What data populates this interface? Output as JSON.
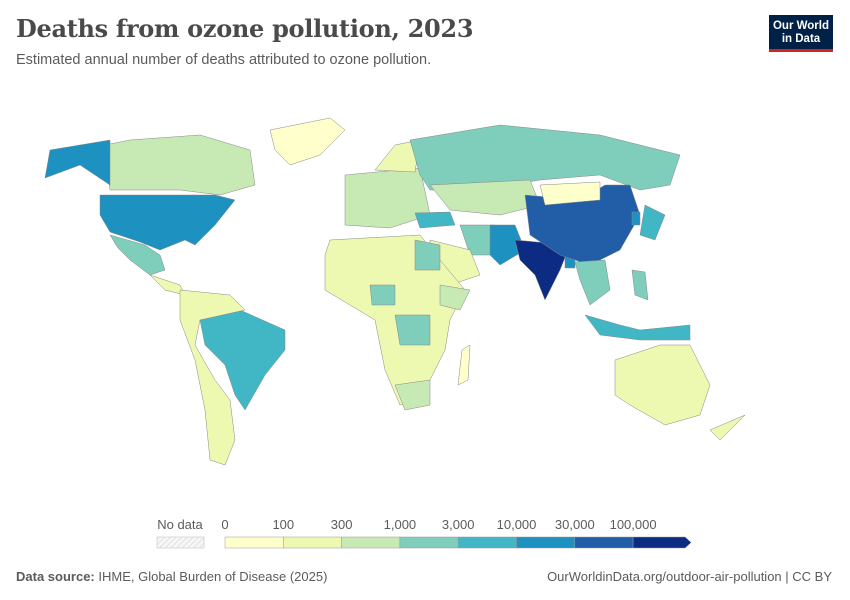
{
  "header": {
    "title": "Deaths from ozone pollution, 2023",
    "subtitle": "Estimated annual number of deaths attributed to ozone pollution.",
    "logo": "Our World in Data"
  },
  "chart_data": {
    "type": "choropleth",
    "title": "Deaths from ozone pollution, 2023",
    "subtitle": "Estimated annual number of deaths attributed to ozone pollution.",
    "legend": {
      "no_data_label": "No data",
      "ticks": [
        "0",
        "100",
        "300",
        "1,000",
        "3,000",
        "10,000",
        "30,000",
        "100,000"
      ],
      "colors": [
        "#ffffcc",
        "#edf8b1",
        "#c7e9b4",
        "#7fcdbb",
        "#41b6c4",
        "#1d91c0",
        "#225ea8",
        "#0c2c84"
      ],
      "no_data_color": "#eeeeee",
      "placement": "bottom"
    },
    "regions": [
      {
        "name": "Canada",
        "bin": 2
      },
      {
        "name": "United States",
        "bin": 5
      },
      {
        "name": "Greenland",
        "bin": 0
      },
      {
        "name": "Mexico",
        "bin": 3
      },
      {
        "name": "Central America",
        "bin": 1
      },
      {
        "name": "Brazil",
        "bin": 4
      },
      {
        "name": "Rest of South America",
        "bin": 1
      },
      {
        "name": "Europe",
        "bin": 2
      },
      {
        "name": "Scandinavia",
        "bin": 1
      },
      {
        "name": "Russia",
        "bin": 3
      },
      {
        "name": "Central Asia",
        "bin": 2
      },
      {
        "name": "Turkey",
        "bin": 4
      },
      {
        "name": "Iran",
        "bin": 3
      },
      {
        "name": "Arabian Peninsula",
        "bin": 1
      },
      {
        "name": "Africa",
        "bin": 1
      },
      {
        "name": "Egypt",
        "bin": 3
      },
      {
        "name": "Nigeria",
        "bin": 3
      },
      {
        "name": "DR Congo",
        "bin": 3
      },
      {
        "name": "South Africa",
        "bin": 2
      },
      {
        "name": "Ethiopia",
        "bin": 2
      },
      {
        "name": "Madagascar",
        "bin": 0
      },
      {
        "name": "Pakistan",
        "bin": 5
      },
      {
        "name": "India",
        "bin": 7
      },
      {
        "name": "Bangladesh",
        "bin": 5
      },
      {
        "name": "China",
        "bin": 6
      },
      {
        "name": "Mongolia",
        "bin": 0
      },
      {
        "name": "Southeast Asia",
        "bin": 3
      },
      {
        "name": "Japan",
        "bin": 4
      },
      {
        "name": "South Korea",
        "bin": 5
      },
      {
        "name": "Indonesia",
        "bin": 4
      },
      {
        "name": "Philippines",
        "bin": 3
      },
      {
        "name": "Australia",
        "bin": 1
      },
      {
        "name": "New Zealand",
        "bin": 1
      }
    ]
  },
  "footer": {
    "source_label": "Data source:",
    "source": "IHME, Global Burden of Disease (2025)",
    "url": "OurWorldinData.org/outdoor-air-pollution | CC BY"
  }
}
